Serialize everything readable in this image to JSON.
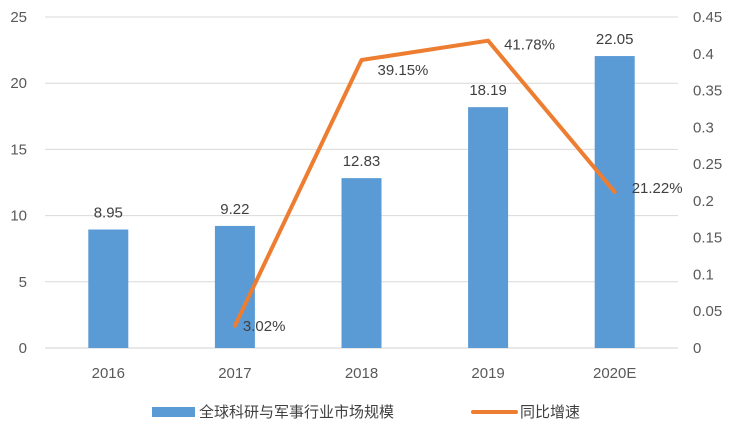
{
  "chart_data": {
    "type": "bar",
    "title": "",
    "xlabel": "",
    "ylabel": "",
    "categories": [
      "2016",
      "2017",
      "2018",
      "2019",
      "2020E"
    ],
    "series": [
      {
        "name": "全球科研与军事行业市场规模",
        "type": "bar",
        "axis": "left",
        "color": "#5B9BD5",
        "values": [
          8.95,
          9.22,
          12.83,
          18.19,
          22.05
        ],
        "labels": [
          "8.95",
          "9.22",
          "12.83",
          "18.19",
          "22.05"
        ]
      },
      {
        "name": "同比增速",
        "type": "line",
        "axis": "right",
        "color": "#ED7D31",
        "values": [
          null,
          0.0302,
          0.3915,
          0.4178,
          0.2122
        ],
        "labels": [
          "",
          "3.02%",
          "39.15%",
          "41.78%",
          "21.22%"
        ]
      }
    ],
    "left_axis": {
      "ylim": [
        0,
        25
      ],
      "ticks": [
        "0",
        "5",
        "10",
        "15",
        "20",
        "25"
      ]
    },
    "right_axis": {
      "ylim": [
        0,
        0.45
      ],
      "ticks": [
        "0",
        "0.05",
        "0.1",
        "0.15",
        "0.2",
        "0.25",
        "0.3",
        "0.35",
        "0.4",
        "0.45"
      ]
    },
    "grid": true,
    "legend": "bottom"
  }
}
